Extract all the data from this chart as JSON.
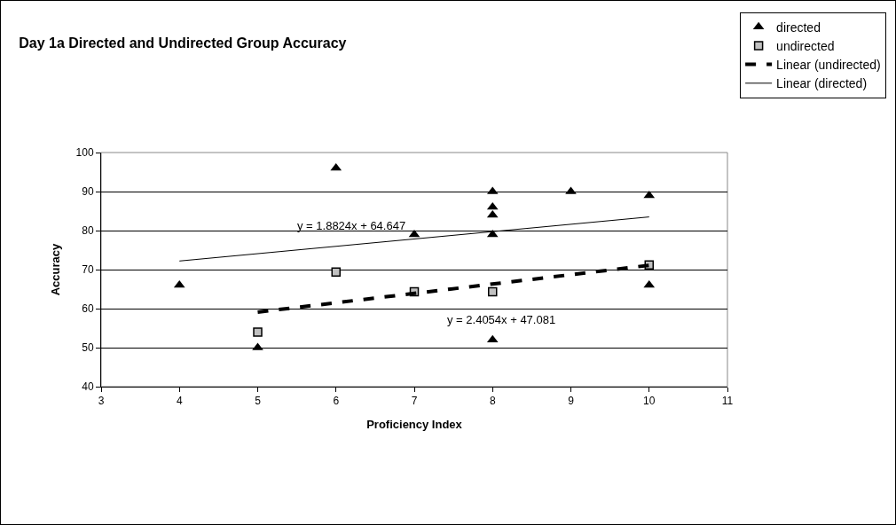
{
  "chart_data": {
    "type": "scatter",
    "title": "Day 1a Directed and Undirected Group Accuracy",
    "xlabel": "Proficiency Index",
    "ylabel": "Accuracy",
    "x": [
      4,
      5,
      6,
      7,
      8,
      8,
      8,
      8,
      8,
      9,
      10,
      10
    ],
    "series": [
      {
        "name": "directed",
        "color": "#000000",
        "marker": "triangle",
        "values": [
          66,
          50,
          96,
          79,
          90,
          86,
          84,
          79,
          52,
          90,
          89,
          66
        ]
      },
      {
        "name": "undirected",
        "color": "#c0c0c0",
        "marker": "square",
        "x": [
          5,
          6,
          7,
          8,
          10
        ],
        "values": [
          54,
          69.4,
          64.3,
          64.3,
          71.2
        ]
      },
      {
        "name": "Linear (undirected)",
        "type": "line",
        "color": "#000000",
        "marker": "none",
        "line_style": "dashed",
        "x": [
          5,
          10
        ],
        "values": [
          59.1,
          71.1
        ]
      },
      {
        "name": "Linear (directed)",
        "type": "line",
        "color": "#000000",
        "marker": "none",
        "line_style": "solid",
        "x": [
          4,
          10
        ],
        "values": [
          72.2,
          83.5
        ]
      }
    ],
    "annotations": [
      "y = 1.8824x + 64.647",
      "y = 2.4054x + 47.081"
    ],
    "xlim": [
      3,
      11
    ],
    "xticks": [
      3,
      4,
      5,
      6,
      7,
      8,
      9,
      10,
      11
    ],
    "ylim": [
      40,
      100
    ],
    "yticks": [
      40,
      50,
      60,
      70,
      80,
      90,
      100
    ],
    "grid": "y",
    "legend": "top right"
  }
}
